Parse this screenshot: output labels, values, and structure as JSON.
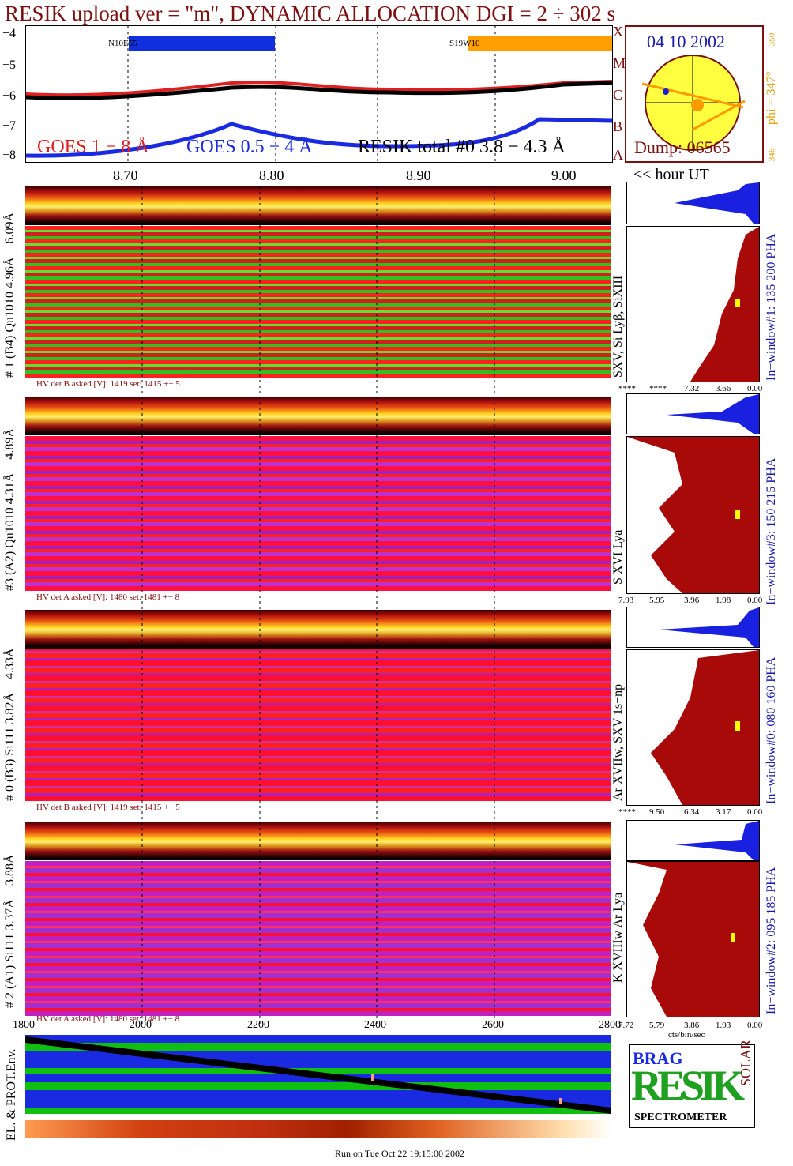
{
  "title": "RESIK upload ver = \"m\", DYNAMIC ALLOCATION  DGI =   2 ÷ 302 s",
  "goes": {
    "y_ticks": [
      "−4",
      "−5",
      "−6",
      "−7",
      "−8"
    ],
    "class_letters": [
      "X",
      "M",
      "C",
      "B",
      "A"
    ],
    "legend_goes1": "GOES 1 − 8 Å",
    "legend_goes05": "GOES 0.5 − 4 Å",
    "legend_resik": "RESIK total #0  3.8 − 4.3 Å",
    "bar_left_label": "N10E55",
    "bar_right_label": "S19W10",
    "x_ticks": [
      "8.70",
      "8.80",
      "8.90",
      "9.00"
    ],
    "x_unit": "<< hour UT",
    "colors": {
      "goes1": "#e02020",
      "goes05": "#1a2ae0",
      "resik": "#000000",
      "bar_left": "#1030e0",
      "bar_right": "#ffa000"
    }
  },
  "sun": {
    "date": "04 10 2002",
    "dump": "Dump: 06565",
    "phi": "phi = 347°",
    "phi_top": "350",
    "phi_bottom": "346",
    "colors": {
      "disk": "#ffff40",
      "border": "#7a1010",
      "spot": "#ff9a00",
      "mark": "#1a20d0"
    }
  },
  "panels": [
    {
      "left_label": "# 1 (B4) Qu1010 4.96Å − 6.09Å",
      "line_label": "SXV,  Si Lyβ, SiXIII",
      "window_label": "In−window#1:  135 200 PHA",
      "hv": "HV det B asked [V]:  1419 set:  1415 +−    5",
      "hist_ticks": [
        "****",
        "****",
        "7.32",
        "3.66",
        "0.00"
      ]
    },
    {
      "left_label": "#3 (A2) Qu1010  4.31Å − 4.89Å",
      "line_label": "S XVI Lya",
      "window_label": "In−window#3:  150 215 PHA",
      "hv": "HV det A asked [V]:  1480 set:  1481 +−    8",
      "hist_ticks": [
        "7.93",
        "5.95",
        "3.96",
        "1.98",
        "0.00"
      ]
    },
    {
      "left_label": "# 0 (B3) Si111  3.82Å − 4.33Å",
      "line_label": "Ar XVIIw,  SXV 1s−np",
      "window_label": "In−window#0:  080 160 PHA",
      "hv": "HV det B asked [V]:  1419 set:  1415 +−    5",
      "hist_ticks": [
        "****",
        "9.50",
        "6.34",
        "3.17",
        "0.00"
      ]
    },
    {
      "left_label": "# 2 (A1) Si111  3.37Å − 3.88Å",
      "line_label": "K XVIIIw  Ar Lya",
      "window_label": "In−window#2:  095 185 PHA",
      "hv": "HV det A asked [V]:  1480 set:  1481 +−    8",
      "hist_ticks": [
        "7.72",
        "5.79",
        "3.86",
        "1.93",
        "0.00"
      ]
    }
  ],
  "hist_unit": "cts/bin/sec",
  "env": {
    "label": "EL. & PROT.Env.",
    "x_ticks": [
      "1800",
      "2000",
      "2200",
      "2400",
      "2600",
      "2800"
    ]
  },
  "logo": {
    "text": "SPECTROMETER",
    "big": "RESIK",
    "small_top": "BRAG",
    "side": "SOLAR"
  },
  "footer": "Run on Tue Oct 22 19:15:00 2002"
}
